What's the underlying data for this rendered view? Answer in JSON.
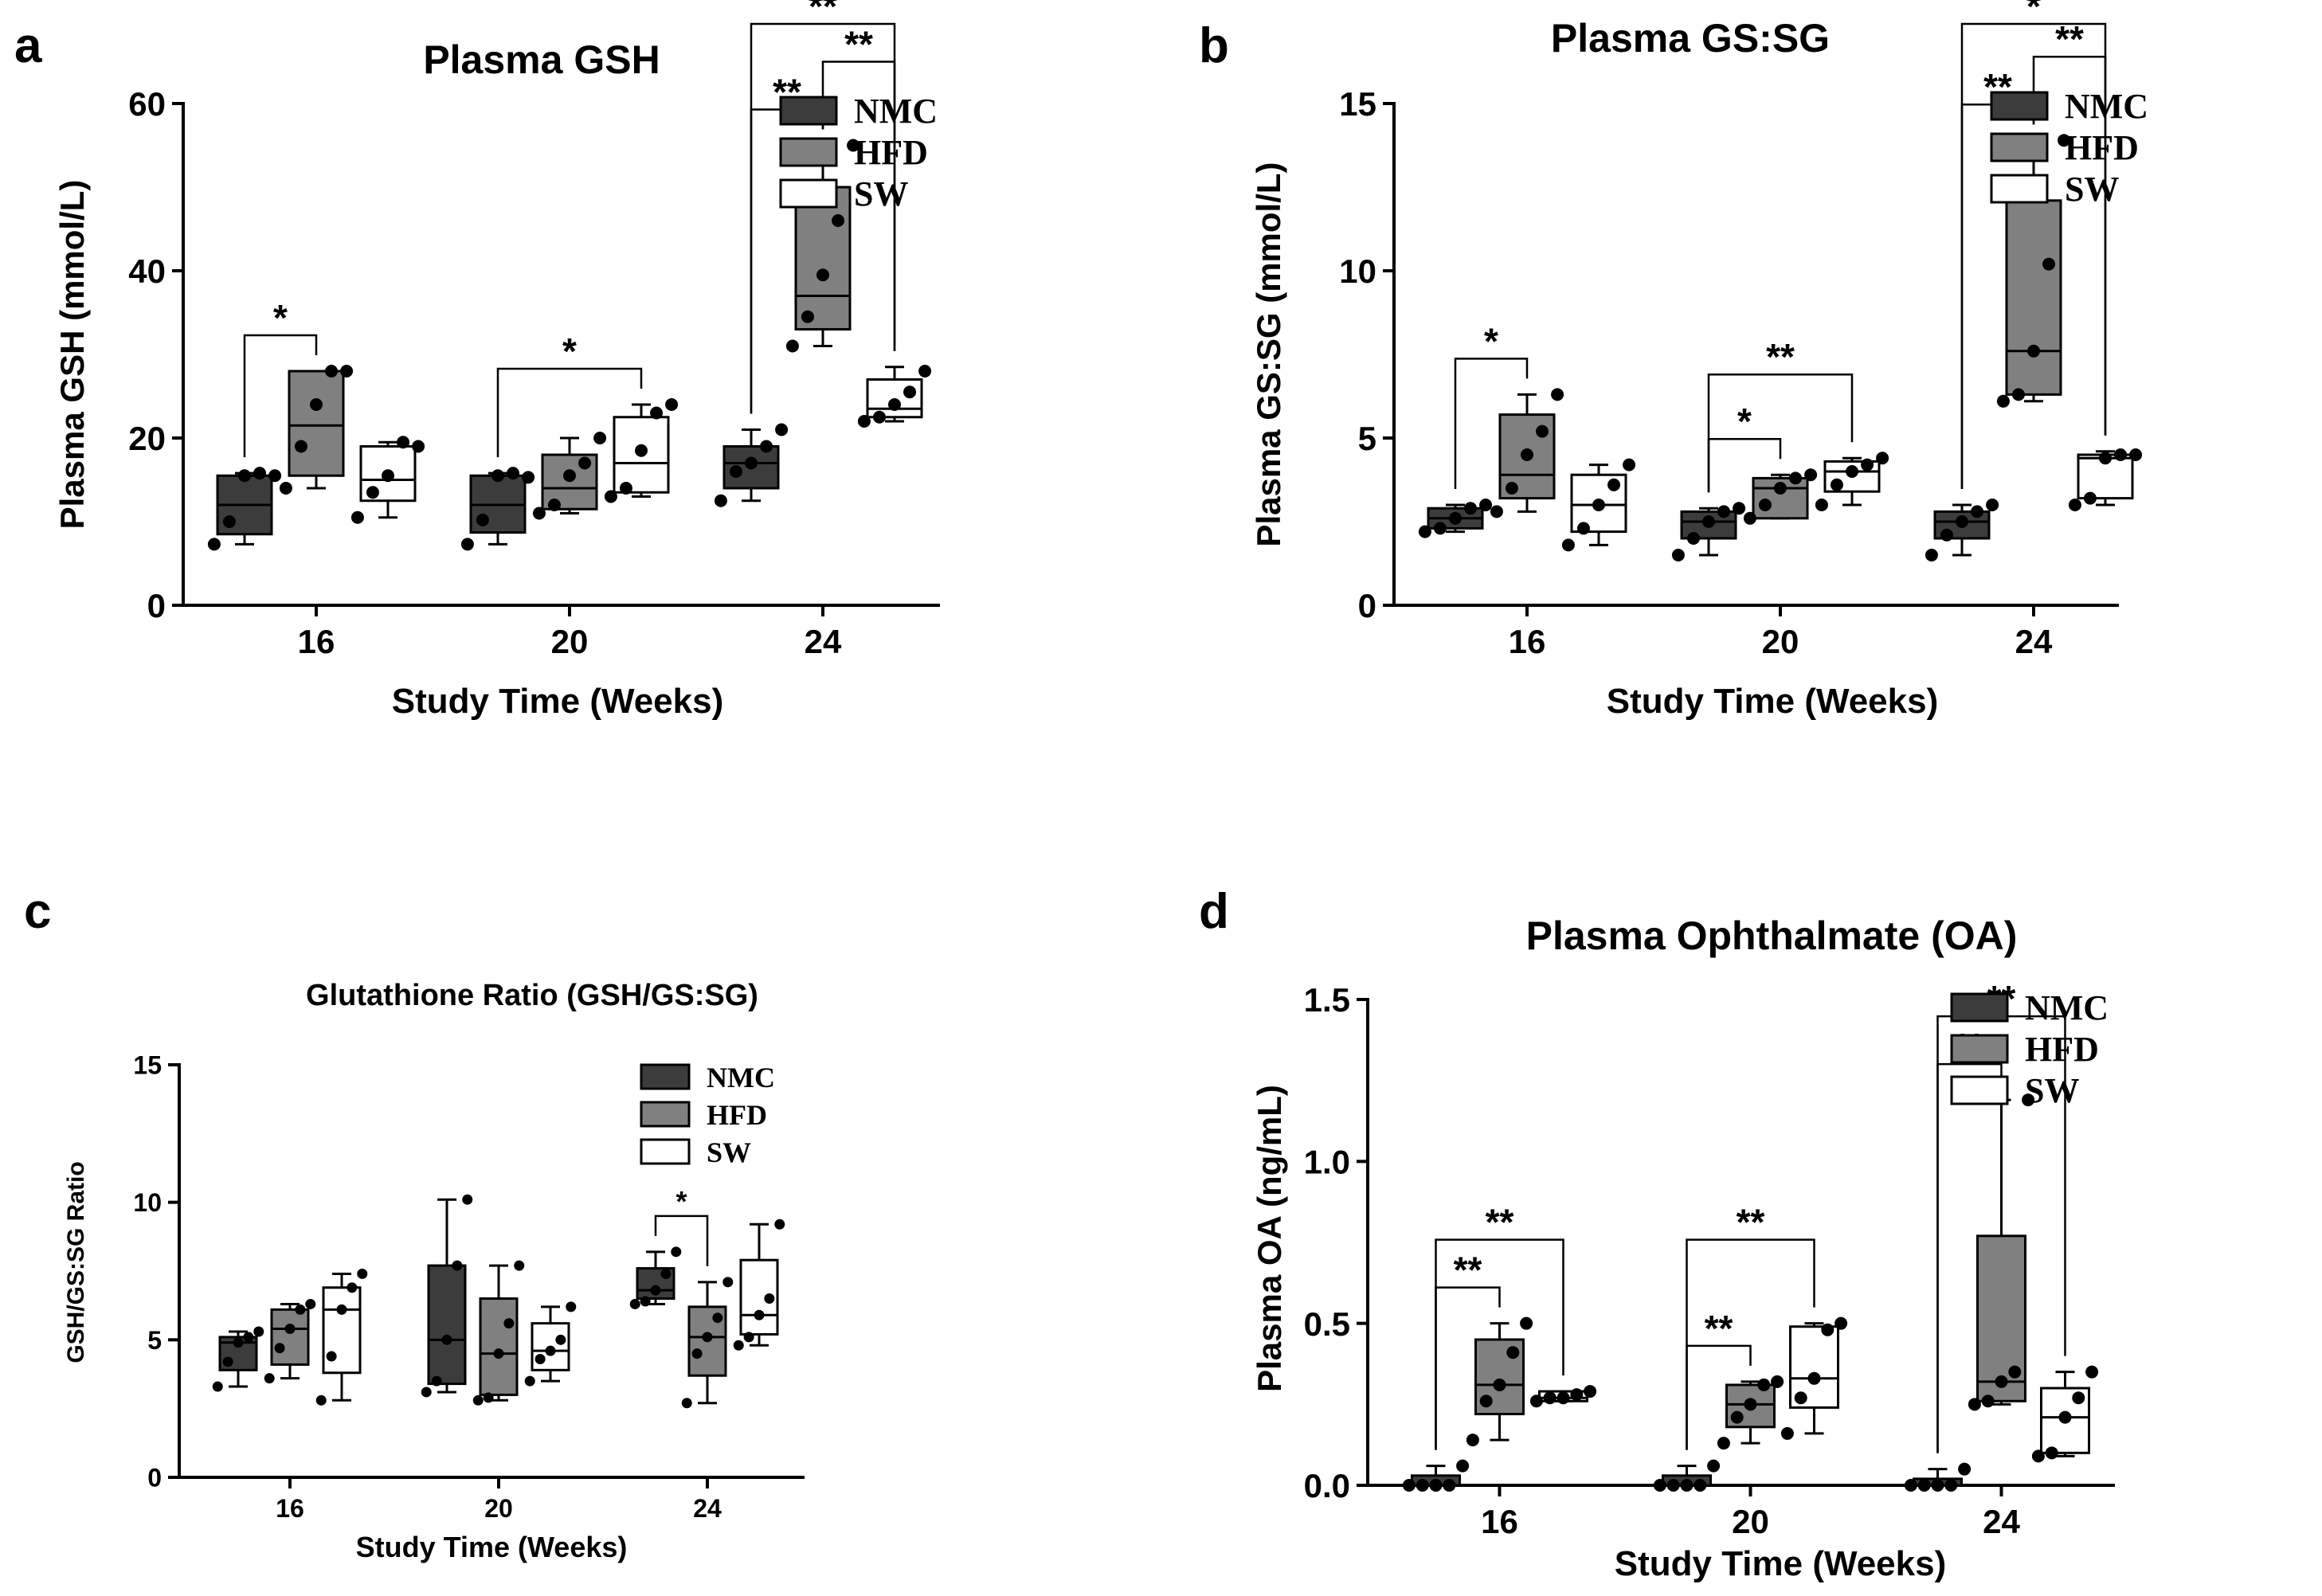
{
  "chart_data": [
    {
      "panel_letter": "a",
      "type": "box",
      "title": "Plasma GSH",
      "xlabel": "Study Time (Weeks)",
      "ylabel": "Plasma GSH (mmol/L)",
      "categories": [
        "16",
        "20",
        "24"
      ],
      "ylim": [
        0,
        60
      ],
      "yticks": [
        "0",
        "20",
        "40",
        "60"
      ],
      "legend_position": "top-right",
      "series": [
        {
          "name": "NMC",
          "color": "#3c3c3c",
          "boxes": [
            {
              "q1": 8.5,
              "median": 12,
              "q3": 15.5,
              "min": 7.3,
              "max": 15.8,
              "points": [
                7.3,
                10,
                15.5,
                15.8,
                15.5
              ]
            },
            {
              "q1": 8.7,
              "median": 12,
              "q3": 15.5,
              "min": 7.3,
              "max": 15.8,
              "points": [
                7.3,
                10.2,
                15.5,
                15.8,
                15.3
              ]
            },
            {
              "q1": 14,
              "median": 17,
              "q3": 19,
              "min": 12.5,
              "max": 21,
              "points": [
                12.5,
                16,
                17,
                19,
                21
              ]
            }
          ]
        },
        {
          "name": "HFD",
          "color": "#808080",
          "boxes": [
            {
              "q1": 15.5,
              "median": 21.5,
              "q3": 28,
              "min": 14,
              "max": 28,
              "points": [
                14,
                19,
                24,
                28,
                28
              ]
            },
            {
              "q1": 11.5,
              "median": 14,
              "q3": 18,
              "min": 11,
              "max": 20,
              "points": [
                11,
                12,
                15.5,
                17,
                20
              ]
            },
            {
              "q1": 33,
              "median": 37,
              "q3": 50,
              "min": 31,
              "max": 55,
              "points": [
                31,
                34.5,
                39.5,
                46,
                55
              ]
            }
          ]
        },
        {
          "name": "SW",
          "color": "#ffffff",
          "boxes": [
            {
              "q1": 12.5,
              "median": 15,
              "q3": 19,
              "min": 10.5,
              "max": 19.5,
              "points": [
                10.5,
                13.5,
                15.5,
                19.5,
                19
              ]
            },
            {
              "q1": 13.5,
              "median": 17,
              "q3": 22.5,
              "min": 13,
              "max": 24,
              "points": [
                13,
                14,
                18.5,
                23,
                24
              ]
            },
            {
              "q1": 22.5,
              "median": 23.5,
              "q3": 27,
              "min": 22,
              "max": 28.5,
              "points": [
                22,
                22.5,
                24,
                25.5,
                28
              ]
            }
          ]
        }
      ],
      "significance": [
        {
          "label": "*",
          "group": 0,
          "from": 0,
          "to": 1
        },
        {
          "label": "*",
          "group": 1,
          "from": 0,
          "to": 2
        },
        {
          "label": "**",
          "group": 2,
          "from": 0,
          "to": 1
        },
        {
          "label": "**",
          "group": 2,
          "from": 1,
          "to": 2
        },
        {
          "label": "**",
          "group": 2,
          "from": 0,
          "to": 2
        }
      ]
    },
    {
      "panel_letter": "b",
      "type": "box",
      "title": "Plasma GS:SG",
      "xlabel": "Study Time (Weeks)",
      "ylabel": "Plasma GS:SG (mmol/L)",
      "categories": [
        "16",
        "20",
        "24"
      ],
      "ylim": [
        0,
        15
      ],
      "yticks": [
        "0",
        "5",
        "10",
        "15"
      ],
      "legend_position": "top-right",
      "series": [
        {
          "name": "NMC",
          "color": "#3c3c3c",
          "boxes": [
            {
              "q1": 2.3,
              "median": 2.6,
              "q3": 2.9,
              "min": 2.2,
              "max": 3.0,
              "points": [
                2.2,
                2.3,
                2.6,
                2.9,
                3.0
              ]
            },
            {
              "q1": 2.0,
              "median": 2.5,
              "q3": 2.8,
              "min": 1.5,
              "max": 2.9,
              "points": [
                1.5,
                2.0,
                2.5,
                2.8,
                2.9
              ]
            },
            {
              "q1": 2.0,
              "median": 2.5,
              "q3": 2.8,
              "min": 1.5,
              "max": 3.0,
              "points": [
                1.5,
                2.1,
                2.5,
                2.8,
                3.0
              ]
            }
          ]
        },
        {
          "name": "HFD",
          "color": "#808080",
          "boxes": [
            {
              "q1": 3.2,
              "median": 3.9,
              "q3": 5.7,
              "min": 2.8,
              "max": 6.3,
              "points": [
                2.8,
                3.5,
                4.5,
                5.2,
                6.3
              ]
            },
            {
              "q1": 2.6,
              "median": 3.5,
              "q3": 3.8,
              "min": 2.6,
              "max": 3.9,
              "points": [
                2.6,
                3.0,
                3.5,
                3.8,
                3.9
              ]
            },
            {
              "q1": 6.3,
              "median": 7.6,
              "q3": 12.1,
              "min": 6.1,
              "max": 13.9,
              "points": [
                6.1,
                6.3,
                7.6,
                10.2,
                13.9
              ]
            }
          ]
        },
        {
          "name": "SW",
          "color": "#ffffff",
          "boxes": [
            {
              "q1": 2.2,
              "median": 3.0,
              "q3": 3.9,
              "min": 1.8,
              "max": 4.2,
              "points": [
                1.8,
                2.3,
                3.0,
                3.6,
                4.2
              ]
            },
            {
              "q1": 3.4,
              "median": 4.0,
              "q3": 4.3,
              "min": 3.0,
              "max": 4.4,
              "points": [
                3.0,
                3.6,
                4.0,
                4.2,
                4.4
              ]
            },
            {
              "q1": 3.2,
              "median": 4.4,
              "q3": 4.5,
              "min": 3.0,
              "max": 4.6,
              "points": [
                3.0,
                3.2,
                4.4,
                4.5,
                4.5
              ]
            }
          ]
        }
      ],
      "significance": [
        {
          "label": "*",
          "group": 0,
          "from": 0,
          "to": 1
        },
        {
          "label": "*",
          "group": 1,
          "from": 0,
          "to": 1
        },
        {
          "label": "**",
          "group": 1,
          "from": 0,
          "to": 2
        },
        {
          "label": "**",
          "group": 2,
          "from": 0,
          "to": 1
        },
        {
          "label": "**",
          "group": 2,
          "from": 1,
          "to": 2
        },
        {
          "label": "*",
          "group": 2,
          "from": 0,
          "to": 2
        }
      ]
    },
    {
      "panel_letter": "c",
      "type": "box",
      "title": "Glutathione Ratio (GSH/GS:SG)",
      "xlabel": "Study Time (Weeks)",
      "ylabel": "GSH/GS:SG Ratio",
      "categories": [
        "16",
        "20",
        "24"
      ],
      "ylim": [
        0,
        15
      ],
      "yticks": [
        "0",
        "5",
        "10",
        "15"
      ],
      "legend_position": "top-right",
      "series": [
        {
          "name": "NMC",
          "color": "#3c3c3c",
          "boxes": [
            {
              "q1": 3.9,
              "median": 4.9,
              "q3": 5.1,
              "min": 3.3,
              "max": 5.3,
              "points": [
                3.3,
                4.2,
                4.9,
                5.1,
                5.3
              ]
            },
            {
              "q1": 3.4,
              "median": 5.0,
              "q3": 7.7,
              "min": 3.1,
              "max": 10.1,
              "points": [
                3.1,
                3.5,
                5.0,
                7.7,
                10.1
              ]
            },
            {
              "q1": 6.5,
              "median": 6.8,
              "q3": 7.6,
              "min": 6.3,
              "max": 8.2,
              "points": [
                6.3,
                6.4,
                6.8,
                7.4,
                8.2
              ]
            }
          ]
        },
        {
          "name": "HFD",
          "color": "#808080",
          "boxes": [
            {
              "q1": 4.1,
              "median": 5.4,
              "q3": 6.1,
              "min": 3.6,
              "max": 6.3,
              "points": [
                3.6,
                4.7,
                5.4,
                6.1,
                6.3
              ]
            },
            {
              "q1": 3.0,
              "median": 4.5,
              "q3": 6.5,
              "min": 2.8,
              "max": 7.7,
              "points": [
                2.8,
                2.9,
                4.5,
                5.6,
                7.7
              ]
            },
            {
              "q1": 3.7,
              "median": 5.1,
              "q3": 6.2,
              "min": 2.7,
              "max": 7.1,
              "points": [
                2.7,
                4.5,
                5.1,
                5.8,
                7.1
              ]
            }
          ]
        },
        {
          "name": "SW",
          "color": "#ffffff",
          "boxes": [
            {
              "q1": 3.8,
              "median": 6.1,
              "q3": 6.9,
              "min": 2.8,
              "max": 7.4,
              "points": [
                2.8,
                4.4,
                6.1,
                6.9,
                7.4
              ]
            },
            {
              "q1": 3.9,
              "median": 4.6,
              "q3": 5.6,
              "min": 3.5,
              "max": 6.2,
              "points": [
                3.5,
                4.3,
                4.6,
                5.0,
                6.2
              ]
            },
            {
              "q1": 5.2,
              "median": 5.9,
              "q3": 7.9,
              "min": 4.8,
              "max": 9.2,
              "points": [
                4.8,
                5.1,
                5.9,
                6.5,
                9.2
              ]
            }
          ]
        }
      ],
      "significance": [
        {
          "label": "*",
          "group": 2,
          "from": 0,
          "to": 1
        }
      ]
    },
    {
      "panel_letter": "d",
      "type": "box",
      "title": "Plasma Ophthalmate (OA)",
      "xlabel": "Study Time (Weeks)",
      "ylabel": "Plasma OA (ng/mL)",
      "categories": [
        "16",
        "20",
        "24"
      ],
      "ylim": [
        0,
        1.5
      ],
      "yticks": [
        "0.0",
        "0.5",
        "1.0",
        "1.5"
      ],
      "legend_position": "top-right",
      "series": [
        {
          "name": "NMC",
          "color": "#3c3c3c",
          "boxes": [
            {
              "q1": 0.0,
              "median": 0.0,
              "q3": 0.03,
              "min": 0.0,
              "max": 0.06,
              "points": [
                0.0,
                0.0,
                0.0,
                0.0,
                0.06
              ]
            },
            {
              "q1": 0.0,
              "median": 0.0,
              "q3": 0.03,
              "min": 0.0,
              "max": 0.06,
              "points": [
                0.0,
                0.0,
                0.0,
                0.0,
                0.06
              ]
            },
            {
              "q1": 0.0,
              "median": 0.0,
              "q3": 0.02,
              "min": 0.0,
              "max": 0.05,
              "points": [
                0.0,
                0.0,
                0.0,
                0.0,
                0.05
              ]
            }
          ]
        },
        {
          "name": "HFD",
          "color": "#808080",
          "boxes": [
            {
              "q1": 0.22,
              "median": 0.31,
              "q3": 0.45,
              "min": 0.14,
              "max": 0.5,
              "points": [
                0.14,
                0.26,
                0.31,
                0.41,
                0.5
              ]
            },
            {
              "q1": 0.18,
              "median": 0.25,
              "q3": 0.31,
              "min": 0.13,
              "max": 0.32,
              "points": [
                0.13,
                0.21,
                0.25,
                0.31,
                0.32
              ]
            },
            {
              "q1": 0.26,
              "median": 0.32,
              "q3": 0.77,
              "min": 0.25,
              "max": 1.19,
              "points": [
                0.25,
                0.26,
                0.32,
                0.35,
                1.19
              ]
            }
          ]
        },
        {
          "name": "SW",
          "color": "#ffffff",
          "boxes": [
            {
              "q1": 0.26,
              "median": 0.27,
              "q3": 0.29,
              "min": 0.26,
              "max": 0.29,
              "points": [
                0.26,
                0.27,
                0.27,
                0.28,
                0.29
              ]
            },
            {
              "q1": 0.24,
              "median": 0.33,
              "q3": 0.49,
              "min": 0.16,
              "max": 0.5,
              "points": [
                0.16,
                0.27,
                0.33,
                0.48,
                0.5
              ]
            },
            {
              "q1": 0.1,
              "median": 0.21,
              "q3": 0.3,
              "min": 0.09,
              "max": 0.35,
              "points": [
                0.09,
                0.1,
                0.21,
                0.27,
                0.35
              ]
            }
          ]
        }
      ],
      "significance": [
        {
          "label": "**",
          "group": 0,
          "from": 0,
          "to": 1
        },
        {
          "label": "**",
          "group": 0,
          "from": 0,
          "to": 2
        },
        {
          "label": "**",
          "group": 1,
          "from": 0,
          "to": 1
        },
        {
          "label": "**",
          "group": 1,
          "from": 0,
          "to": 2
        },
        {
          "label": "**",
          "group": 2,
          "from": 0,
          "to": 1
        },
        {
          "label": "**",
          "group": 2,
          "from": 0,
          "to": 2
        }
      ]
    }
  ]
}
